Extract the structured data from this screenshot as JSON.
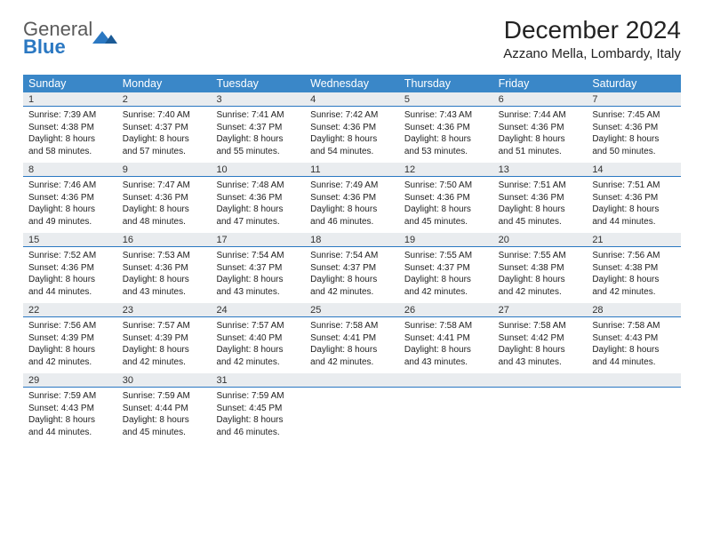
{
  "logo": {
    "general": "General",
    "blue": "Blue"
  },
  "title": "December 2024",
  "location": "Azzano Mella, Lombardy, Italy",
  "colors": {
    "header_bg": "#3a87c8",
    "header_text": "#ffffff",
    "daynum_bg": "#e9ecef",
    "daynum_border": "#2b78c2",
    "text": "#222222",
    "logo_gray": "#5a5a5a",
    "logo_blue": "#2b78c2",
    "page_bg": "#ffffff"
  },
  "day_names": [
    "Sunday",
    "Monday",
    "Tuesday",
    "Wednesday",
    "Thursday",
    "Friday",
    "Saturday"
  ],
  "weeks": [
    {
      "nums": [
        "1",
        "2",
        "3",
        "4",
        "5",
        "6",
        "7"
      ],
      "cells": [
        {
          "sunrise": "Sunrise: 7:39 AM",
          "sunset": "Sunset: 4:38 PM",
          "daylight": "Daylight: 8 hours and 58 minutes."
        },
        {
          "sunrise": "Sunrise: 7:40 AM",
          "sunset": "Sunset: 4:37 PM",
          "daylight": "Daylight: 8 hours and 57 minutes."
        },
        {
          "sunrise": "Sunrise: 7:41 AM",
          "sunset": "Sunset: 4:37 PM",
          "daylight": "Daylight: 8 hours and 55 minutes."
        },
        {
          "sunrise": "Sunrise: 7:42 AM",
          "sunset": "Sunset: 4:36 PM",
          "daylight": "Daylight: 8 hours and 54 minutes."
        },
        {
          "sunrise": "Sunrise: 7:43 AM",
          "sunset": "Sunset: 4:36 PM",
          "daylight": "Daylight: 8 hours and 53 minutes."
        },
        {
          "sunrise": "Sunrise: 7:44 AM",
          "sunset": "Sunset: 4:36 PM",
          "daylight": "Daylight: 8 hours and 51 minutes."
        },
        {
          "sunrise": "Sunrise: 7:45 AM",
          "sunset": "Sunset: 4:36 PM",
          "daylight": "Daylight: 8 hours and 50 minutes."
        }
      ]
    },
    {
      "nums": [
        "8",
        "9",
        "10",
        "11",
        "12",
        "13",
        "14"
      ],
      "cells": [
        {
          "sunrise": "Sunrise: 7:46 AM",
          "sunset": "Sunset: 4:36 PM",
          "daylight": "Daylight: 8 hours and 49 minutes."
        },
        {
          "sunrise": "Sunrise: 7:47 AM",
          "sunset": "Sunset: 4:36 PM",
          "daylight": "Daylight: 8 hours and 48 minutes."
        },
        {
          "sunrise": "Sunrise: 7:48 AM",
          "sunset": "Sunset: 4:36 PM",
          "daylight": "Daylight: 8 hours and 47 minutes."
        },
        {
          "sunrise": "Sunrise: 7:49 AM",
          "sunset": "Sunset: 4:36 PM",
          "daylight": "Daylight: 8 hours and 46 minutes."
        },
        {
          "sunrise": "Sunrise: 7:50 AM",
          "sunset": "Sunset: 4:36 PM",
          "daylight": "Daylight: 8 hours and 45 minutes."
        },
        {
          "sunrise": "Sunrise: 7:51 AM",
          "sunset": "Sunset: 4:36 PM",
          "daylight": "Daylight: 8 hours and 45 minutes."
        },
        {
          "sunrise": "Sunrise: 7:51 AM",
          "sunset": "Sunset: 4:36 PM",
          "daylight": "Daylight: 8 hours and 44 minutes."
        }
      ]
    },
    {
      "nums": [
        "15",
        "16",
        "17",
        "18",
        "19",
        "20",
        "21"
      ],
      "cells": [
        {
          "sunrise": "Sunrise: 7:52 AM",
          "sunset": "Sunset: 4:36 PM",
          "daylight": "Daylight: 8 hours and 44 minutes."
        },
        {
          "sunrise": "Sunrise: 7:53 AM",
          "sunset": "Sunset: 4:36 PM",
          "daylight": "Daylight: 8 hours and 43 minutes."
        },
        {
          "sunrise": "Sunrise: 7:54 AM",
          "sunset": "Sunset: 4:37 PM",
          "daylight": "Daylight: 8 hours and 43 minutes."
        },
        {
          "sunrise": "Sunrise: 7:54 AM",
          "sunset": "Sunset: 4:37 PM",
          "daylight": "Daylight: 8 hours and 42 minutes."
        },
        {
          "sunrise": "Sunrise: 7:55 AM",
          "sunset": "Sunset: 4:37 PM",
          "daylight": "Daylight: 8 hours and 42 minutes."
        },
        {
          "sunrise": "Sunrise: 7:55 AM",
          "sunset": "Sunset: 4:38 PM",
          "daylight": "Daylight: 8 hours and 42 minutes."
        },
        {
          "sunrise": "Sunrise: 7:56 AM",
          "sunset": "Sunset: 4:38 PM",
          "daylight": "Daylight: 8 hours and 42 minutes."
        }
      ]
    },
    {
      "nums": [
        "22",
        "23",
        "24",
        "25",
        "26",
        "27",
        "28"
      ],
      "cells": [
        {
          "sunrise": "Sunrise: 7:56 AM",
          "sunset": "Sunset: 4:39 PM",
          "daylight": "Daylight: 8 hours and 42 minutes."
        },
        {
          "sunrise": "Sunrise: 7:57 AM",
          "sunset": "Sunset: 4:39 PM",
          "daylight": "Daylight: 8 hours and 42 minutes."
        },
        {
          "sunrise": "Sunrise: 7:57 AM",
          "sunset": "Sunset: 4:40 PM",
          "daylight": "Daylight: 8 hours and 42 minutes."
        },
        {
          "sunrise": "Sunrise: 7:58 AM",
          "sunset": "Sunset: 4:41 PM",
          "daylight": "Daylight: 8 hours and 42 minutes."
        },
        {
          "sunrise": "Sunrise: 7:58 AM",
          "sunset": "Sunset: 4:41 PM",
          "daylight": "Daylight: 8 hours and 43 minutes."
        },
        {
          "sunrise": "Sunrise: 7:58 AM",
          "sunset": "Sunset: 4:42 PM",
          "daylight": "Daylight: 8 hours and 43 minutes."
        },
        {
          "sunrise": "Sunrise: 7:58 AM",
          "sunset": "Sunset: 4:43 PM",
          "daylight": "Daylight: 8 hours and 44 minutes."
        }
      ]
    },
    {
      "nums": [
        "29",
        "30",
        "31",
        "",
        "",
        "",
        ""
      ],
      "cells": [
        {
          "sunrise": "Sunrise: 7:59 AM",
          "sunset": "Sunset: 4:43 PM",
          "daylight": "Daylight: 8 hours and 44 minutes."
        },
        {
          "sunrise": "Sunrise: 7:59 AM",
          "sunset": "Sunset: 4:44 PM",
          "daylight": "Daylight: 8 hours and 45 minutes."
        },
        {
          "sunrise": "Sunrise: 7:59 AM",
          "sunset": "Sunset: 4:45 PM",
          "daylight": "Daylight: 8 hours and 46 minutes."
        },
        null,
        null,
        null,
        null
      ]
    }
  ]
}
